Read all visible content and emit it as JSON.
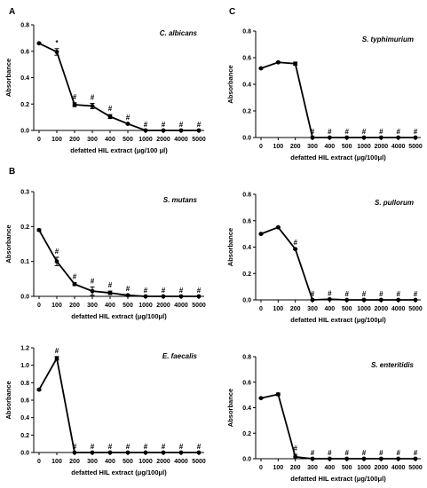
{
  "panel_labels": [
    "A",
    "B",
    "C"
  ],
  "chart_data": [
    {
      "type": "line",
      "panel": "A",
      "title": "C. albicans",
      "xlabel": "defatted HIL extract (μg/100 μl)",
      "ylabel": "Absorbance",
      "categories": [
        "0",
        "100",
        "200",
        "300",
        "400",
        "500",
        "1000",
        "2000",
        "4000",
        "5000"
      ],
      "values": [
        0.66,
        0.595,
        0.195,
        0.185,
        0.105,
        0.05,
        0.0,
        0.0,
        0.0,
        0.0
      ],
      "errors": [
        0.005,
        0.025,
        0.015,
        0.02,
        0.015,
        0.005,
        0.0,
        0.0,
        0.0,
        0.0
      ],
      "markers": [
        "",
        "*",
        "#",
        "#",
        "#",
        "#",
        "#",
        "#",
        "#",
        "#"
      ],
      "yticks": [
        "0.0",
        "0.2",
        "0.4",
        "0.6",
        "0.8"
      ],
      "ylim": [
        0,
        0.8
      ]
    },
    {
      "type": "line",
      "panel": "B",
      "title": "S. mutans",
      "xlabel": "defatted HIL extract (μg/100μl)",
      "ylabel": "Absorbance",
      "categories": [
        "0",
        "100",
        "200",
        "300",
        "400",
        "500",
        "1000",
        "2000",
        "4000",
        "5000"
      ],
      "values": [
        0.19,
        0.1,
        0.035,
        0.015,
        0.01,
        0.003,
        0.0,
        0.0,
        0.0,
        0.0
      ],
      "errors": [
        0.003,
        0.012,
        0.004,
        0.012,
        0.005,
        0.002,
        0.0,
        0.0,
        0.0,
        0.0
      ],
      "markers": [
        "",
        "#",
        "#",
        "#",
        "#",
        "#",
        "#",
        "#",
        "#",
        "#"
      ],
      "yticks": [
        "0.0",
        "0.1",
        "0.2",
        "0.3"
      ],
      "ylim": [
        0,
        0.3
      ]
    },
    {
      "type": "line",
      "panel": "",
      "title": "E. faecalis",
      "xlabel": "defatted HIL extract (μg/100μl)",
      "ylabel": "Absorbance",
      "categories": [
        "0",
        "100",
        "200",
        "300",
        "400",
        "500",
        "1000",
        "2000",
        "4000",
        "5000"
      ],
      "values": [
        0.72,
        1.08,
        0.0,
        0.0,
        0.0,
        0.0,
        0.0,
        0.0,
        0.0,
        0.0
      ],
      "errors": [
        0.01,
        0.02,
        0.0,
        0.0,
        0.0,
        0.0,
        0.0,
        0.0,
        0.0,
        0.0
      ],
      "markers": [
        "",
        "#",
        "#",
        "#",
        "#",
        "#",
        "#",
        "#",
        "#",
        "#"
      ],
      "yticks": [
        "0.0",
        "0.2",
        "0.4",
        "0.6",
        "0.8",
        "1.0",
        "1.2"
      ],
      "ylim": [
        0,
        1.2
      ]
    },
    {
      "type": "line",
      "panel": "C",
      "title": "S. typhimurium",
      "xlabel": "defatted HIL extract (μg/100μl)",
      "ylabel": "Absorbance",
      "categories": [
        "0",
        "100",
        "200",
        "300",
        "400",
        "500",
        "1000",
        "2000",
        "4000",
        "5000"
      ],
      "values": [
        0.52,
        0.565,
        0.555,
        0.0,
        0.0,
        0.0,
        0.0,
        0.0,
        0.0,
        0.0
      ],
      "errors": [
        0.005,
        0.005,
        0.012,
        0.0,
        0.0,
        0.0,
        0.0,
        0.0,
        0.0,
        0.0
      ],
      "markers": [
        "",
        "",
        "",
        "#",
        "#",
        "#",
        "#",
        "#",
        "#",
        "#"
      ],
      "yticks": [
        "0.0",
        "0.2",
        "0.4",
        "0.6",
        "0.8"
      ],
      "ylim": [
        0,
        0.8
      ]
    },
    {
      "type": "line",
      "panel": "",
      "title": "S. pullorum",
      "xlabel": "defatted HIL extract (μg/100μl)",
      "ylabel": "Absorbance",
      "categories": [
        "0",
        "100",
        "200",
        "300",
        "400",
        "500",
        "1000",
        "2000",
        "4000",
        "5000"
      ],
      "values": [
        0.5,
        0.55,
        0.385,
        0.0,
        0.005,
        0.0,
        0.0,
        0.0,
        0.0,
        0.0
      ],
      "errors": [
        0.005,
        0.005,
        0.005,
        0.0,
        0.0,
        0.0,
        0.0,
        0.0,
        0.0,
        0.0
      ],
      "markers": [
        "",
        "",
        "#",
        "#",
        "#",
        "#",
        "#",
        "#",
        "#",
        "#"
      ],
      "yticks": [
        "0.0",
        "0.2",
        "0.4",
        "0.6",
        "0.8"
      ],
      "ylim": [
        0,
        0.8
      ]
    },
    {
      "type": "line",
      "panel": "",
      "title": "S. enteritidis",
      "xlabel": "defatted HIL extract (μg/100μl)",
      "ylabel": "Absorbance",
      "categories": [
        "0",
        "100",
        "200",
        "300",
        "400",
        "500",
        "1000",
        "2000",
        "4000",
        "5000"
      ],
      "values": [
        0.475,
        0.505,
        0.015,
        0.0,
        0.0,
        0.0,
        0.0,
        0.0,
        0.0,
        0.0
      ],
      "errors": [
        0.005,
        0.01,
        0.02,
        0.0,
        0.0,
        0.0,
        0.0,
        0.0,
        0.0,
        0.0
      ],
      "markers": [
        "",
        "",
        "#",
        "#",
        "#",
        "#",
        "#",
        "#",
        "#",
        "#"
      ],
      "yticks": [
        "0.0",
        "0.2",
        "0.4",
        "0.6",
        "0.8"
      ],
      "ylim": [
        0,
        0.8
      ]
    }
  ]
}
